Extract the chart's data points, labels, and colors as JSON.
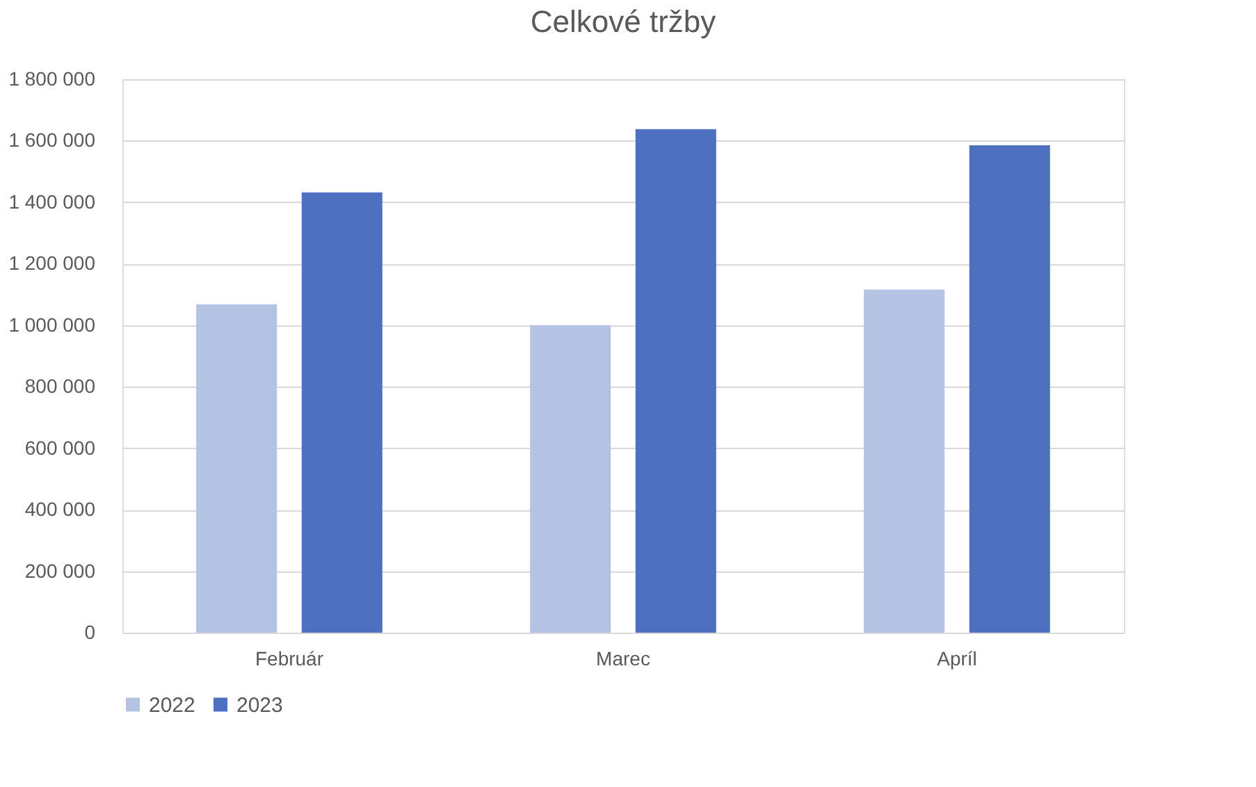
{
  "chart_data": {
    "type": "bar",
    "title": "Celkové tržby",
    "categories": [
      "Február",
      "Marec",
      "Apríl"
    ],
    "series": [
      {
        "name": "2022",
        "color": "#b4c2e4",
        "values": [
          1068000,
          1000000,
          1116000
        ]
      },
      {
        "name": "2023",
        "color": "#4f6fc0",
        "values": [
          1432000,
          1638000,
          1585000
        ]
      }
    ],
    "ylim": [
      0,
      1800000
    ],
    "yticks": [
      0,
      {
        "value": 200000,
        "label": "200 000"
      },
      {
        "value": 400000,
        "label": "400 000"
      },
      {
        "value": 600000,
        "label": "600 000"
      },
      {
        "value": 800000,
        "label": "800 000"
      },
      {
        "value": 1000000,
        "label": "1 000 000"
      },
      {
        "value": 1200000,
        "label": "1 200 000"
      },
      {
        "value": 1400000,
        "label": "1 400 000"
      },
      {
        "value": 1600000,
        "label": "1 600 000"
      },
      {
        "value": 1800000,
        "label": "1 800 000"
      }
    ],
    "grid": "y",
    "legend": "bottom"
  }
}
